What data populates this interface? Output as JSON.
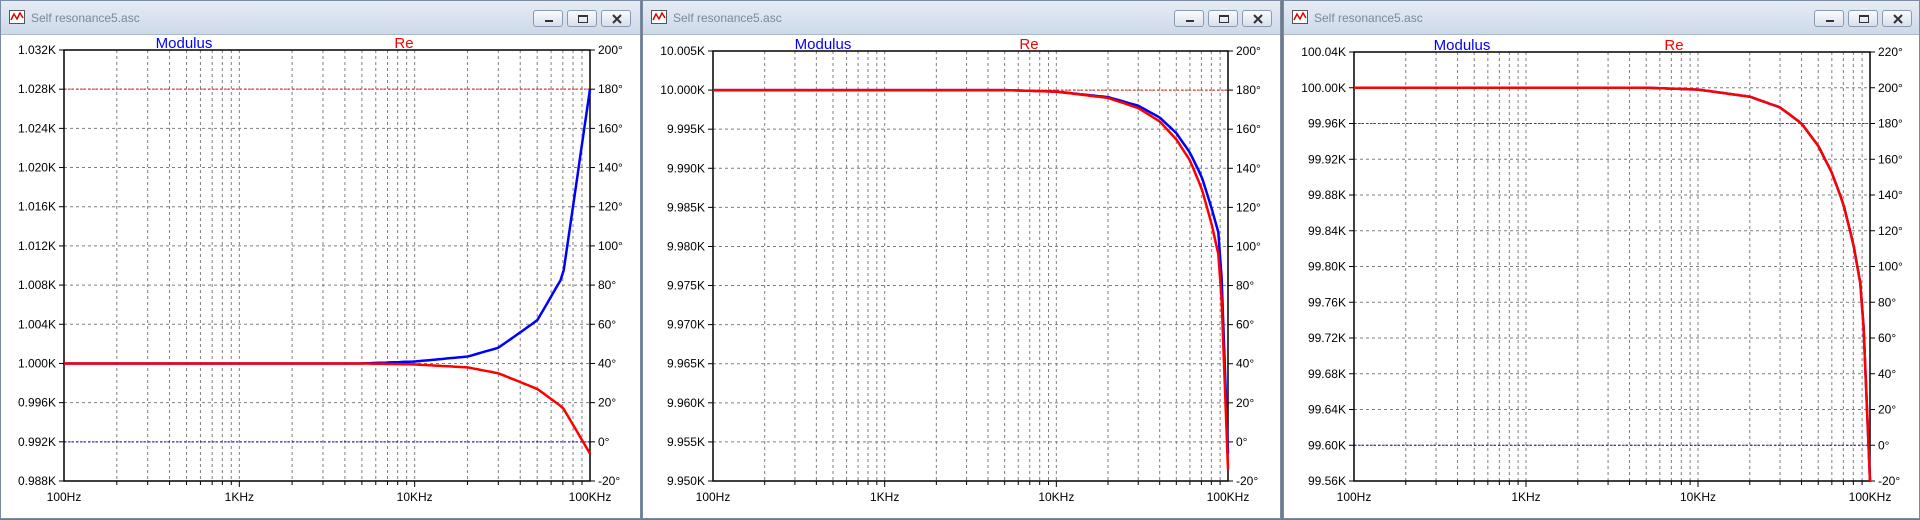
{
  "windows": [
    {
      "title": "Self resonance5.asc",
      "traces": [
        {
          "name": "Modulus",
          "color": "#0000ff"
        },
        {
          "name": "Re",
          "color": "#ff0000"
        }
      ],
      "chart_data": {
        "type": "line",
        "x_scale": "log",
        "xlim": [
          100,
          100000
        ],
        "x_tick_labels": [
          "100Hz",
          "1KHz",
          "10KHz",
          "100KHz"
        ],
        "left_axis": {
          "ylim": [
            0.988,
            1.032
          ],
          "ticks": [
            "1.032K",
            "1.028K",
            "1.024K",
            "1.020K",
            "1.016K",
            "1.012K",
            "1.008K",
            "1.004K",
            "1.000K",
            "0.996K",
            "0.992K",
            "0.988K"
          ]
        },
        "right_axis": {
          "ylim": [
            -20,
            200
          ],
          "ticks": [
            "200°",
            "180°",
            "160°",
            "140°",
            "120°",
            "100°",
            "80°",
            "60°",
            "40°",
            "20°",
            "0°",
            "-20°"
          ]
        },
        "series": [
          {
            "name": "Modulus",
            "x": [
              100,
              1000,
              5000,
              10000,
              20000,
              30000,
              50000,
              70000,
              100000
            ],
            "y": [
              1.0,
              1.0,
              1.0,
              1.0002,
              1.0007,
              1.0016,
              1.0044,
              1.0089,
              1.028
            ]
          },
          {
            "name": "Re",
            "x": [
              100,
              1000,
              5000,
              10000,
              20000,
              30000,
              50000,
              70000,
              100000
            ],
            "y": [
              1.0,
              1.0,
              1.0,
              0.9999,
              0.9996,
              0.999,
              0.9974,
              0.9955,
              0.9908
            ]
          }
        ],
        "dashed_reference_lines": [
          {
            "axis": "right",
            "value": 180,
            "color": "#ff0000"
          },
          {
            "axis": "right",
            "value": 0,
            "color": "#0000ff"
          }
        ]
      }
    },
    {
      "title": "Self resonance5.asc",
      "traces": [
        {
          "name": "Modulus",
          "color": "#0000ff"
        },
        {
          "name": "Re",
          "color": "#ff0000"
        }
      ],
      "chart_data": {
        "type": "line",
        "x_scale": "log",
        "xlim": [
          100,
          100000
        ],
        "x_tick_labels": [
          "100Hz",
          "1KHz",
          "10KHz",
          "100KHz"
        ],
        "left_axis": {
          "ylim": [
            9.95,
            10.005
          ],
          "ticks": [
            "10.005K",
            "10.000K",
            "9.995K",
            "9.990K",
            "9.985K",
            "9.980K",
            "9.975K",
            "9.970K",
            "9.965K",
            "9.960K",
            "9.955K",
            "9.950K"
          ]
        },
        "right_axis": {
          "ylim": [
            -20,
            200
          ],
          "ticks": [
            "200°",
            "180°",
            "160°",
            "140°",
            "120°",
            "100°",
            "80°",
            "60°",
            "40°",
            "20°",
            "0°",
            "-20°"
          ]
        },
        "series": [
          {
            "name": "Modulus",
            "x": [
              100,
              1000,
              5000,
              10000,
              20000,
              30000,
              40000,
              50000,
              60000,
              70000,
              80000,
              90000,
              100000
            ],
            "y": [
              10.0,
              10.0,
              10.0,
              9.9998,
              9.9991,
              9.998,
              9.9965,
              9.9945,
              9.992,
              9.989,
              9.985,
              9.981,
              9.9535
            ]
          },
          {
            "name": "Re",
            "x": [
              100,
              1000,
              5000,
              10000,
              20000,
              30000,
              40000,
              50000,
              60000,
              70000,
              80000,
              90000,
              100000
            ],
            "y": [
              10.0,
              10.0,
              10.0,
              9.9998,
              9.999,
              9.9977,
              9.996,
              9.9937,
              9.991,
              9.9875,
              9.983,
              9.978,
              9.9515
            ]
          }
        ],
        "dashed_reference_lines": [
          {
            "axis": "right",
            "value": 180,
            "color": "#ff0000"
          }
        ]
      }
    },
    {
      "title": "Self resonance5.asc",
      "traces": [
        {
          "name": "Modulus",
          "color": "#0000ff"
        },
        {
          "name": "Re",
          "color": "#ff0000"
        }
      ],
      "chart_data": {
        "type": "line",
        "x_scale": "log",
        "xlim": [
          100,
          100000
        ],
        "x_tick_labels": [
          "100Hz",
          "1KHz",
          "10KHz",
          "100KHz"
        ],
        "left_axis": {
          "ylim": [
            99.56,
            100.04
          ],
          "ticks": [
            "100.04K",
            "100.00K",
            "99.96K",
            "99.92K",
            "99.88K",
            "99.84K",
            "99.80K",
            "99.76K",
            "99.72K",
            "99.68K",
            "99.64K",
            "99.60K",
            "99.56K"
          ]
        },
        "right_axis": {
          "ylim": [
            -20,
            220
          ],
          "ticks": [
            "220°",
            "200°",
            "180°",
            "160°",
            "140°",
            "120°",
            "100°",
            "80°",
            "60°",
            "40°",
            "20°",
            "0°",
            "-20°"
          ]
        },
        "series": [
          {
            "name": "Modulus",
            "x": [
              100,
              1000,
              5000,
              10000,
              20000,
              30000,
              40000,
              50000,
              60000,
              70000,
              80000,
              90000,
              100000
            ],
            "y": [
              100.0,
              100.0,
              100.0,
              99.998,
              99.99,
              99.978,
              99.96,
              99.935,
              99.905,
              99.87,
              99.825,
              99.77,
              99.56
            ]
          },
          {
            "name": "Re",
            "x": [
              100,
              1000,
              5000,
              10000,
              20000,
              30000,
              40000,
              50000,
              60000,
              70000,
              80000,
              90000,
              100000
            ],
            "y": [
              100.0,
              100.0,
              100.0,
              99.998,
              99.99,
              99.978,
              99.96,
              99.935,
              99.905,
              99.87,
              99.825,
              99.77,
              99.56
            ]
          }
        ],
        "dashed_reference_lines": [
          {
            "axis": "right",
            "value": 180,
            "color": "#ff0000"
          },
          {
            "axis": "right",
            "value": 0,
            "color": "#0000ff"
          }
        ]
      }
    }
  ]
}
